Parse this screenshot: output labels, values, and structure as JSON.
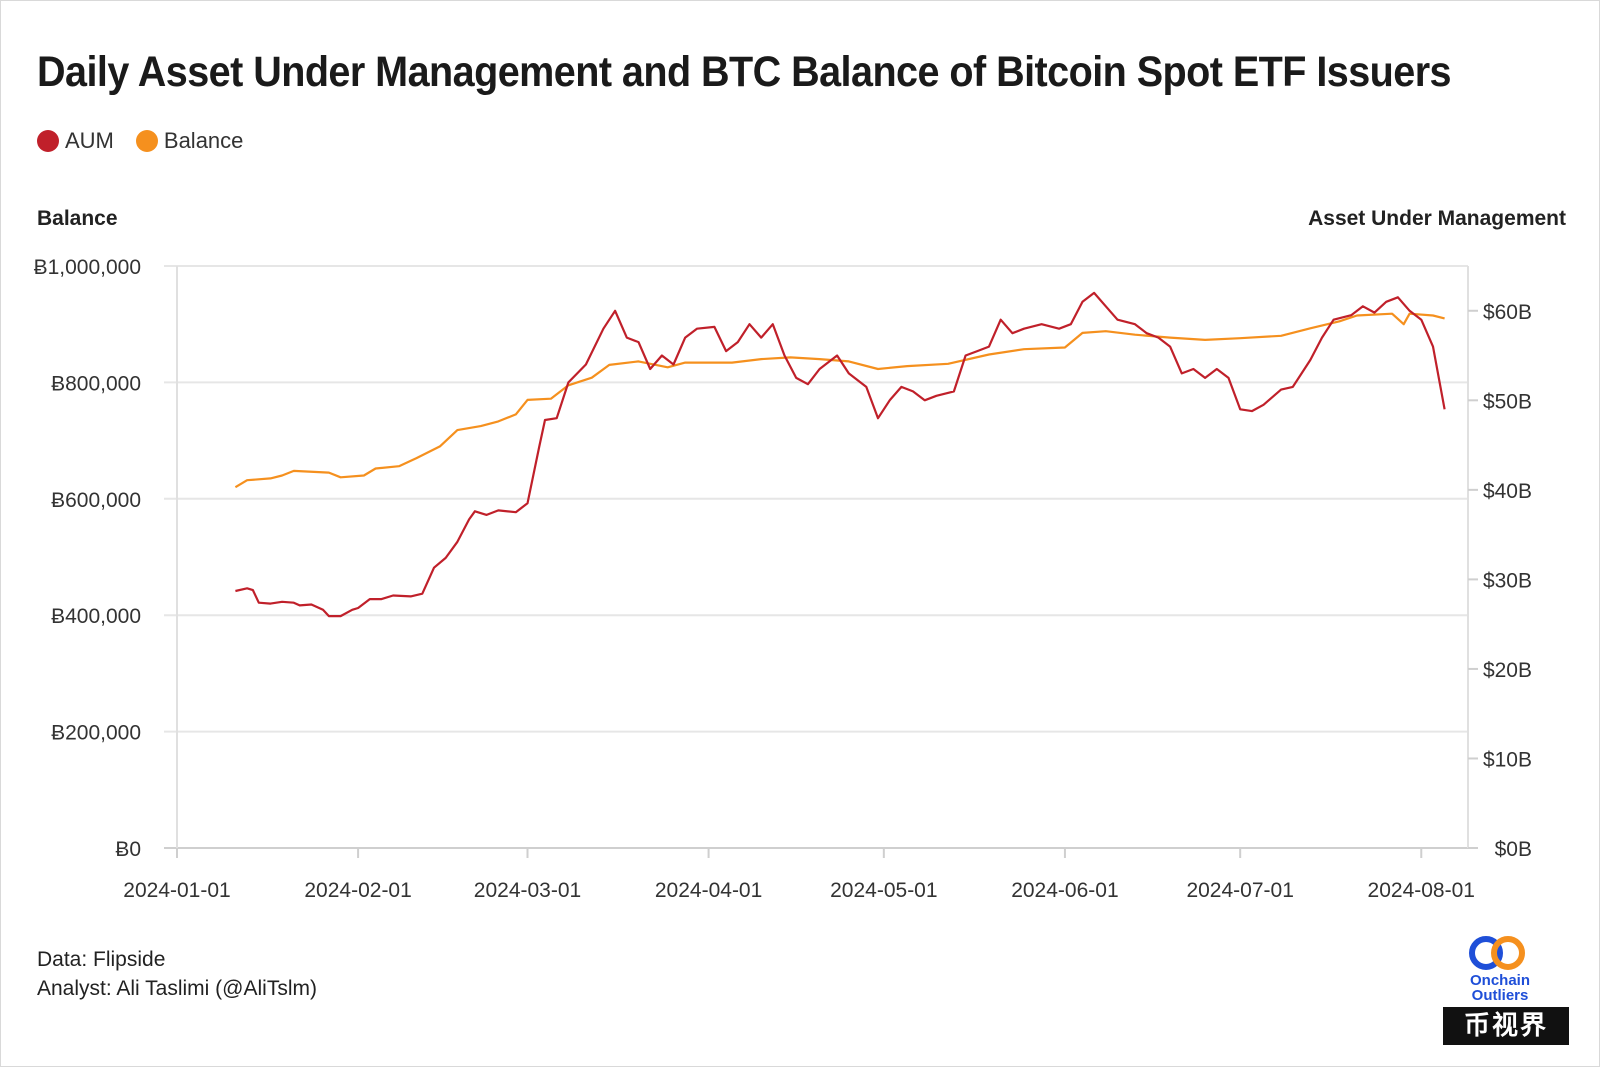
{
  "title": "Daily Asset Under Management and BTC Balance of Bitcoin Spot ETF Issuers",
  "legend": [
    {
      "label": "AUM",
      "color": "#c0202a"
    },
    {
      "label": "Balance",
      "color": "#f5901e"
    }
  ],
  "axes": {
    "left_title": "Balance",
    "right_title": "Asset Under Management"
  },
  "footer": {
    "source": "Data: Flipside",
    "analyst": "Analyst: Ali Taslimi (@AliTslm)"
  },
  "logo": {
    "line1": "Onchain",
    "line2": "Outliers",
    "icon": "two-rings-logo"
  },
  "watermark": "币视界",
  "chart_data": {
    "type": "line",
    "title": "Daily Asset Under Management and BTC Balance of Bitcoin Spot ETF Issuers",
    "x_ticks": [
      "2024-01-01",
      "2024-02-01",
      "2024-03-01",
      "2024-04-01",
      "2024-05-01",
      "2024-06-01",
      "2024-07-01",
      "2024-08-01"
    ],
    "x_range": [
      "2024-01-01",
      "2024-08-09"
    ],
    "grid": true,
    "legend_position": "top-left",
    "left_axis": {
      "label": "Balance",
      "range": [
        0,
        1000000
      ],
      "ticks": [
        0,
        200000,
        400000,
        600000,
        800000,
        1000000
      ],
      "tick_labels": [
        "Ƀ0",
        "Ƀ200,000",
        "Ƀ400,000",
        "Ƀ600,000",
        "Ƀ800,000",
        "Ƀ1,000,000"
      ]
    },
    "right_axis": {
      "label": "Asset Under Management",
      "range": [
        0,
        65
      ],
      "unit": "B USD",
      "ticks": [
        0,
        10,
        20,
        30,
        40,
        50,
        60
      ],
      "tick_labels": [
        "$0B",
        "$10B",
        "$20B",
        "$30B",
        "$40B",
        "$50B",
        "$60B"
      ]
    },
    "series": [
      {
        "name": "AUM",
        "axis": "right",
        "color": "#c0202a",
        "points": [
          [
            "2024-01-11",
            28.7
          ],
          [
            "2024-01-13",
            29.0
          ],
          [
            "2024-01-14",
            28.8
          ],
          [
            "2024-01-15",
            27.4
          ],
          [
            "2024-01-17",
            27.3
          ],
          [
            "2024-01-19",
            27.5
          ],
          [
            "2024-01-21",
            27.4
          ],
          [
            "2024-01-22",
            27.1
          ],
          [
            "2024-01-24",
            27.2
          ],
          [
            "2024-01-26",
            26.6
          ],
          [
            "2024-01-27",
            25.9
          ],
          [
            "2024-01-29",
            25.9
          ],
          [
            "2024-01-31",
            26.6
          ],
          [
            "2024-02-01",
            26.8
          ],
          [
            "2024-02-03",
            27.8
          ],
          [
            "2024-02-05",
            27.8
          ],
          [
            "2024-02-07",
            28.2
          ],
          [
            "2024-02-10",
            28.1
          ],
          [
            "2024-02-12",
            28.4
          ],
          [
            "2024-02-14",
            31.3
          ],
          [
            "2024-02-16",
            32.4
          ],
          [
            "2024-02-18",
            34.2
          ],
          [
            "2024-02-20",
            36.7
          ],
          [
            "2024-02-21",
            37.6
          ],
          [
            "2024-02-23",
            37.2
          ],
          [
            "2024-02-25",
            37.7
          ],
          [
            "2024-02-28",
            37.5
          ],
          [
            "2024-03-01",
            38.5
          ],
          [
            "2024-03-03",
            44.8
          ],
          [
            "2024-03-04",
            47.8
          ],
          [
            "2024-03-06",
            48.0
          ],
          [
            "2024-03-08",
            52.0
          ],
          [
            "2024-03-11",
            54.0
          ],
          [
            "2024-03-14",
            58.0
          ],
          [
            "2024-03-16",
            60.0
          ],
          [
            "2024-03-18",
            57.0
          ],
          [
            "2024-03-20",
            56.5
          ],
          [
            "2024-03-22",
            53.5
          ],
          [
            "2024-03-24",
            55.0
          ],
          [
            "2024-03-26",
            54.0
          ],
          [
            "2024-03-28",
            57.0
          ],
          [
            "2024-03-30",
            58.0
          ],
          [
            "2024-04-02",
            58.2
          ],
          [
            "2024-04-04",
            55.5
          ],
          [
            "2024-04-06",
            56.5
          ],
          [
            "2024-04-08",
            58.5
          ],
          [
            "2024-04-10",
            57.0
          ],
          [
            "2024-04-12",
            58.5
          ],
          [
            "2024-04-14",
            55.0
          ],
          [
            "2024-04-16",
            52.5
          ],
          [
            "2024-04-18",
            51.8
          ],
          [
            "2024-04-20",
            53.5
          ],
          [
            "2024-04-23",
            55.0
          ],
          [
            "2024-04-25",
            53.0
          ],
          [
            "2024-04-28",
            51.5
          ],
          [
            "2024-04-30",
            48.0
          ],
          [
            "2024-05-02",
            50.0
          ],
          [
            "2024-05-04",
            51.5
          ],
          [
            "2024-05-06",
            51.0
          ],
          [
            "2024-05-08",
            50.0
          ],
          [
            "2024-05-10",
            50.5
          ],
          [
            "2024-05-13",
            51.0
          ],
          [
            "2024-05-15",
            55.0
          ],
          [
            "2024-05-17",
            55.5
          ],
          [
            "2024-05-19",
            56.0
          ],
          [
            "2024-05-21",
            59.0
          ],
          [
            "2024-05-23",
            57.5
          ],
          [
            "2024-05-25",
            58.0
          ],
          [
            "2024-05-28",
            58.5
          ],
          [
            "2024-05-31",
            58.0
          ],
          [
            "2024-06-02",
            58.5
          ],
          [
            "2024-06-04",
            61.0
          ],
          [
            "2024-06-06",
            62.0
          ],
          [
            "2024-06-08",
            60.5
          ],
          [
            "2024-06-10",
            59.0
          ],
          [
            "2024-06-13",
            58.5
          ],
          [
            "2024-06-15",
            57.5
          ],
          [
            "2024-06-17",
            57.0
          ],
          [
            "2024-06-19",
            56.0
          ],
          [
            "2024-06-21",
            53.0
          ],
          [
            "2024-06-23",
            53.5
          ],
          [
            "2024-06-25",
            52.5
          ],
          [
            "2024-06-27",
            53.5
          ],
          [
            "2024-06-29",
            52.5
          ],
          [
            "2024-07-01",
            49.0
          ],
          [
            "2024-07-03",
            48.8
          ],
          [
            "2024-07-05",
            49.5
          ],
          [
            "2024-07-08",
            51.2
          ],
          [
            "2024-07-10",
            51.5
          ],
          [
            "2024-07-13",
            54.5
          ],
          [
            "2024-07-15",
            57.0
          ],
          [
            "2024-07-17",
            59.0
          ],
          [
            "2024-07-20",
            59.5
          ],
          [
            "2024-07-22",
            60.5
          ],
          [
            "2024-07-24",
            59.8
          ],
          [
            "2024-07-26",
            61.0
          ],
          [
            "2024-07-28",
            61.5
          ],
          [
            "2024-07-30",
            60.0
          ],
          [
            "2024-08-01",
            59.0
          ],
          [
            "2024-08-03",
            56.0
          ],
          [
            "2024-08-05",
            49.0
          ]
        ]
      },
      {
        "name": "Balance",
        "axis": "left",
        "color": "#f5901e",
        "points": [
          [
            "2024-01-11",
            620000
          ],
          [
            "2024-01-13",
            632000
          ],
          [
            "2024-01-17",
            635000
          ],
          [
            "2024-01-19",
            640000
          ],
          [
            "2024-01-21",
            648000
          ],
          [
            "2024-01-27",
            645000
          ],
          [
            "2024-01-29",
            637000
          ],
          [
            "2024-02-02",
            640000
          ],
          [
            "2024-02-04",
            652000
          ],
          [
            "2024-02-08",
            656000
          ],
          [
            "2024-02-11",
            670000
          ],
          [
            "2024-02-15",
            690000
          ],
          [
            "2024-02-18",
            718000
          ],
          [
            "2024-02-22",
            725000
          ],
          [
            "2024-02-25",
            733000
          ],
          [
            "2024-02-28",
            745000
          ],
          [
            "2024-03-01",
            770000
          ],
          [
            "2024-03-05",
            772000
          ],
          [
            "2024-03-08",
            795000
          ],
          [
            "2024-03-12",
            808000
          ],
          [
            "2024-03-15",
            830000
          ],
          [
            "2024-03-20",
            836000
          ],
          [
            "2024-03-25",
            826000
          ],
          [
            "2024-03-28",
            834000
          ],
          [
            "2024-04-05",
            834000
          ],
          [
            "2024-04-10",
            840000
          ],
          [
            "2024-04-15",
            843000
          ],
          [
            "2024-04-20",
            840000
          ],
          [
            "2024-04-25",
            836000
          ],
          [
            "2024-04-30",
            823000
          ],
          [
            "2024-05-05",
            828000
          ],
          [
            "2024-05-12",
            832000
          ],
          [
            "2024-05-19",
            848000
          ],
          [
            "2024-05-25",
            857000
          ],
          [
            "2024-06-01",
            860000
          ],
          [
            "2024-06-04",
            885000
          ],
          [
            "2024-06-08",
            888000
          ],
          [
            "2024-06-13",
            882000
          ],
          [
            "2024-06-19",
            877000
          ],
          [
            "2024-06-25",
            873000
          ],
          [
            "2024-07-01",
            876000
          ],
          [
            "2024-07-08",
            880000
          ],
          [
            "2024-07-13",
            893000
          ],
          [
            "2024-07-18",
            905000
          ],
          [
            "2024-07-21",
            915000
          ],
          [
            "2024-07-27",
            918000
          ],
          [
            "2024-07-29",
            900000
          ],
          [
            "2024-07-30",
            918000
          ],
          [
            "2024-08-03",
            915000
          ],
          [
            "2024-08-05",
            910000
          ]
        ]
      }
    ]
  }
}
